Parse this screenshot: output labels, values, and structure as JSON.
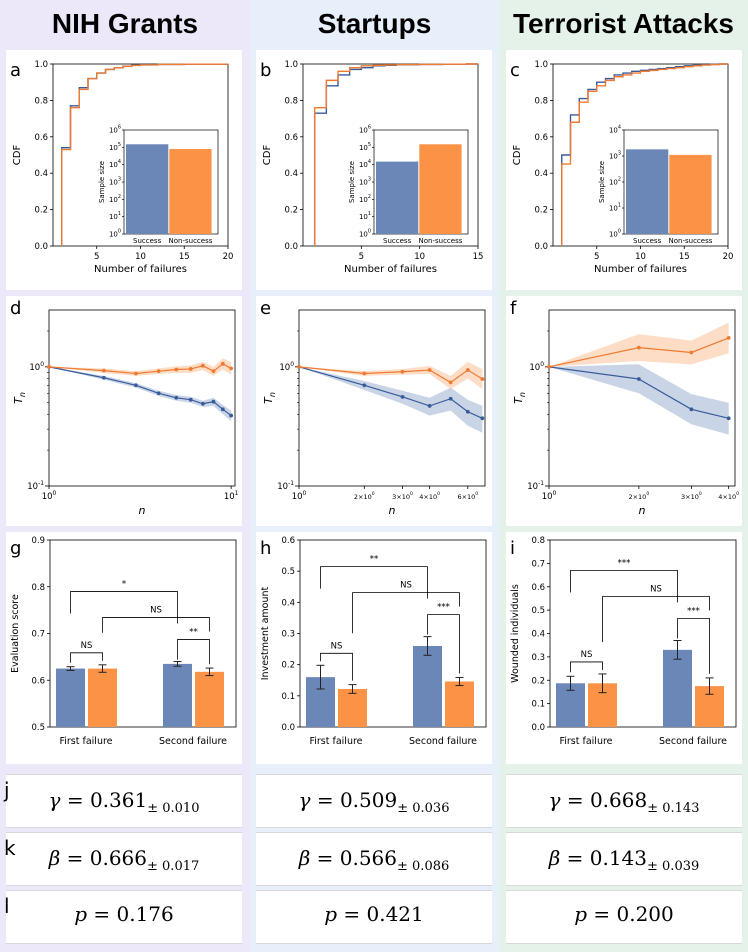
{
  "columns": [
    {
      "title": "NIH Grants",
      "bg": "#ede8f9"
    },
    {
      "title": "Startups",
      "bg": "#e7f0fa"
    },
    {
      "title": "Terrorist Attacks",
      "bg": "#e4f2ea"
    }
  ],
  "colors": {
    "success": "#6a87b8",
    "nonsuccess": "#fb9347",
    "success_line": "#3a5b9a",
    "nonsuccess_line": "#f07a30",
    "success_band": "#b7c5df",
    "nonsuccess_band": "#fcd2b2"
  },
  "panel_labels": {
    "cdf": [
      "a",
      "b",
      "c"
    ],
    "tn": [
      "d",
      "e",
      "f"
    ],
    "bars": [
      "g",
      "h",
      "i"
    ]
  },
  "row_labels": {
    "gamma": "j",
    "beta": "k",
    "p": "l"
  },
  "params": [
    {
      "gamma_sym": "γ",
      "gamma_eq": " = 0.361",
      "gamma_err": "± 0.010",
      "beta_sym": "β",
      "beta_eq": " = 0.666",
      "beta_err": "± 0.017",
      "p_sym": "p",
      "p_eq": " = 0.176"
    },
    {
      "gamma_sym": "γ",
      "gamma_eq": " = 0.509",
      "gamma_err": "± 0.036",
      "beta_sym": "β",
      "beta_eq": " = 0.566",
      "beta_err": "± 0.086",
      "p_sym": "p",
      "p_eq": " = 0.421"
    },
    {
      "gamma_sym": "γ",
      "gamma_eq": " = 0.668",
      "gamma_err": "± 0.143",
      "beta_sym": "β",
      "beta_eq": " = 0.143",
      "beta_err": "± 0.039",
      "p_sym": "p",
      "p_eq": " = 0.200"
    }
  ],
  "chart_data": [
    {
      "id": "a",
      "type": "line",
      "subtype": "cdf-step",
      "xlabel": "Number of failures",
      "ylabel": "CDF",
      "xlim": [
        0,
        20
      ],
      "ylim": [
        0,
        1
      ],
      "xticks": [
        5,
        10,
        15,
        20
      ],
      "yticks": [
        "0.0",
        "0.2",
        "0.4",
        "0.6",
        "0.8",
        "1.0"
      ],
      "series": [
        {
          "name": "Success",
          "x": [
            1,
            2,
            3,
            4,
            5,
            6,
            7,
            8,
            9,
            10,
            12,
            15,
            20
          ],
          "y": [
            0.54,
            0.77,
            0.87,
            0.92,
            0.95,
            0.97,
            0.98,
            0.988,
            0.993,
            0.996,
            0.998,
            0.999,
            1.0
          ]
        },
        {
          "name": "Non-success",
          "x": [
            1,
            2,
            3,
            4,
            5,
            6,
            7,
            8,
            9,
            10,
            12,
            15,
            20
          ],
          "y": [
            0.53,
            0.76,
            0.86,
            0.92,
            0.95,
            0.97,
            0.98,
            0.987,
            0.992,
            0.995,
            0.998,
            0.999,
            1.0
          ]
        }
      ],
      "inset": {
        "type": "bar",
        "ylabel": "Sample size",
        "yscale": "log",
        "yticks": [
          "10^0",
          "10^1",
          "10^2",
          "10^3",
          "10^4",
          "10^5",
          "10^6"
        ],
        "categories": [
          "Success",
          "Non-success"
        ],
        "values": [
          150000,
          80000
        ]
      }
    },
    {
      "id": "b",
      "type": "line",
      "subtype": "cdf-step",
      "xlabel": "Number of failures",
      "ylabel": "CDF",
      "xlim": [
        0,
        15
      ],
      "ylim": [
        0,
        1
      ],
      "xticks": [
        5,
        10,
        15
      ],
      "yticks": [
        "0.0",
        "0.2",
        "0.4",
        "0.6",
        "0.8",
        "1.0"
      ],
      "series": [
        {
          "name": "Success",
          "x": [
            1,
            2,
            3,
            4,
            5,
            6,
            7,
            8,
            10,
            12,
            14
          ],
          "y": [
            0.73,
            0.88,
            0.94,
            0.97,
            0.98,
            0.99,
            0.993,
            0.996,
            0.998,
            0.999,
            1.0
          ]
        },
        {
          "name": "Non-success",
          "x": [
            1,
            2,
            3,
            4,
            5,
            6,
            7,
            8,
            10,
            12,
            14
          ],
          "y": [
            0.76,
            0.91,
            0.96,
            0.98,
            0.99,
            0.993,
            0.995,
            0.997,
            0.998,
            0.999,
            1.0
          ]
        }
      ],
      "inset": {
        "type": "bar",
        "ylabel": "Sample size",
        "yscale": "log",
        "yticks": [
          "10^0",
          "10^1",
          "10^2",
          "10^3",
          "10^4",
          "10^5",
          "10^6"
        ],
        "categories": [
          "Success",
          "Non-success"
        ],
        "values": [
          15000,
          150000
        ]
      }
    },
    {
      "id": "c",
      "type": "line",
      "subtype": "cdf-step",
      "xlabel": "Number of failures",
      "ylabel": "CDF",
      "xlim": [
        0,
        20
      ],
      "ylim": [
        0,
        1
      ],
      "xticks": [
        5,
        10,
        15,
        20
      ],
      "yticks": [
        "0.0",
        "0.2",
        "0.4",
        "0.6",
        "0.8",
        "1.0"
      ],
      "series": [
        {
          "name": "Success",
          "x": [
            1,
            2,
            3,
            4,
            5,
            6,
            7,
            8,
            9,
            10,
            11,
            12,
            13,
            14,
            15,
            16,
            17,
            18,
            19
          ],
          "y": [
            0.5,
            0.72,
            0.81,
            0.86,
            0.9,
            0.92,
            0.94,
            0.95,
            0.96,
            0.965,
            0.97,
            0.975,
            0.98,
            0.985,
            0.99,
            0.993,
            0.996,
            0.998,
            1.0
          ]
        },
        {
          "name": "Non-success",
          "x": [
            1,
            2,
            3,
            4,
            5,
            6,
            7,
            8,
            9,
            10,
            11,
            12,
            13,
            14,
            15,
            16,
            17,
            18,
            19
          ],
          "y": [
            0.45,
            0.68,
            0.79,
            0.85,
            0.88,
            0.91,
            0.93,
            0.94,
            0.95,
            0.96,
            0.965,
            0.97,
            0.975,
            0.98,
            0.985,
            0.99,
            0.994,
            0.997,
            1.0
          ]
        }
      ],
      "inset": {
        "type": "bar",
        "ylabel": "Sample size",
        "yscale": "log",
        "yticks": [
          "10^0",
          "10^1",
          "10^2",
          "10^3",
          "10^4"
        ],
        "categories": [
          "Success",
          "Non-success"
        ],
        "values": [
          1800,
          1100
        ]
      }
    },
    {
      "id": "d",
      "type": "line",
      "scale": "log-log",
      "xlabel": "n",
      "ylabel": "T_n",
      "xlim": [
        1,
        10.5
      ],
      "ylim": [
        0.1,
        3
      ],
      "xticks": [
        "10^0",
        "10^1"
      ],
      "yticks": [
        "10^-1",
        "10^0"
      ],
      "series": [
        {
          "name": "Success",
          "x": [
            1,
            2,
            3,
            4,
            5,
            6,
            7,
            8,
            9,
            10
          ],
          "y": [
            1.0,
            0.81,
            0.7,
            0.6,
            0.55,
            0.53,
            0.49,
            0.51,
            0.44,
            0.39
          ],
          "band": [
            [
              1,
              1
            ],
            [
              0.78,
              0.84
            ],
            [
              0.67,
              0.73
            ],
            [
              0.57,
              0.63
            ],
            [
              0.52,
              0.58
            ],
            [
              0.5,
              0.56
            ],
            [
              0.46,
              0.52
            ],
            [
              0.47,
              0.55
            ],
            [
              0.4,
              0.48
            ],
            [
              0.35,
              0.43
            ]
          ]
        },
        {
          "name": "Non-success",
          "x": [
            1,
            2,
            3,
            4,
            5,
            6,
            7,
            8,
            9,
            10
          ],
          "y": [
            1.0,
            0.93,
            0.88,
            0.92,
            0.95,
            0.96,
            1.02,
            0.92,
            1.06,
            0.97
          ],
          "band": [
            [
              1,
              1
            ],
            [
              0.89,
              0.97
            ],
            [
              0.84,
              0.92
            ],
            [
              0.87,
              0.97
            ],
            [
              0.89,
              1.01
            ],
            [
              0.89,
              1.03
            ],
            [
              0.94,
              1.1
            ],
            [
              0.84,
              1.0
            ],
            [
              0.95,
              1.18
            ],
            [
              0.86,
              1.1
            ]
          ]
        }
      ]
    },
    {
      "id": "e",
      "type": "line",
      "scale": "log-log",
      "xlabel": "n",
      "ylabel": "T_n",
      "xlim": [
        1,
        7.2
      ],
      "ylim": [
        0.1,
        3
      ],
      "xticks": [
        "10^0",
        "2×10^0",
        "3×10^0",
        "4×10^0",
        "6×10^0"
      ],
      "yticks": [
        "10^-1",
        "10^0"
      ],
      "series": [
        {
          "name": "Success",
          "x": [
            1,
            2,
            3,
            4,
            5,
            6,
            7
          ],
          "y": [
            1.0,
            0.7,
            0.56,
            0.47,
            0.54,
            0.42,
            0.37
          ],
          "band": [
            [
              1,
              1
            ],
            [
              0.64,
              0.76
            ],
            [
              0.49,
              0.63
            ],
            [
              0.39,
              0.55
            ],
            [
              0.43,
              0.67
            ],
            [
              0.32,
              0.53
            ],
            [
              0.28,
              0.47
            ]
          ]
        },
        {
          "name": "Non-success",
          "x": [
            1,
            2,
            3,
            4,
            5,
            6,
            7
          ],
          "y": [
            1.0,
            0.88,
            0.91,
            0.94,
            0.74,
            0.94,
            0.79
          ],
          "band": [
            [
              1,
              1
            ],
            [
              0.84,
              0.92
            ],
            [
              0.86,
              0.96
            ],
            [
              0.87,
              1.02
            ],
            [
              0.65,
              0.84
            ],
            [
              0.8,
              1.1
            ],
            [
              0.65,
              0.96
            ]
          ]
        }
      ]
    },
    {
      "id": "f",
      "type": "line",
      "scale": "log-log",
      "xlabel": "n",
      "ylabel": "T_n",
      "xlim": [
        1,
        4.2
      ],
      "ylim": [
        0.1,
        3
      ],
      "xticks": [
        "10^0",
        "2×10^0",
        "3×10^0",
        "4×10^0"
      ],
      "yticks": [
        "10^-1",
        "10^0"
      ],
      "series": [
        {
          "name": "Success",
          "x": [
            1,
            2,
            3,
            4
          ],
          "y": [
            1.0,
            0.79,
            0.44,
            0.37
          ],
          "band": [
            [
              1,
              1
            ],
            [
              0.6,
              1.05
            ],
            [
              0.33,
              0.59
            ],
            [
              0.27,
              0.5
            ]
          ]
        },
        {
          "name": "Non-success",
          "x": [
            1,
            2,
            3,
            4
          ],
          "y": [
            1.0,
            1.45,
            1.32,
            1.75
          ],
          "band": [
            [
              1,
              1
            ],
            [
              1.12,
              1.88
            ],
            [
              1.05,
              1.66
            ],
            [
              1.3,
              2.35
            ]
          ]
        }
      ]
    },
    {
      "id": "g",
      "type": "bar",
      "ylabel": "Evaluation score",
      "ylim": [
        0.5,
        0.9
      ],
      "yticks": [
        "0.5",
        "0.6",
        "0.7",
        "0.8",
        "0.9"
      ],
      "categories": [
        "First failure",
        "Second failure"
      ],
      "series": [
        {
          "name": "Success",
          "values": [
            0.625,
            0.635
          ],
          "errors": [
            0.004,
            0.005
          ]
        },
        {
          "name": "Non-success",
          "values": [
            0.625,
            0.618
          ],
          "errors": [
            0.008,
            0.008
          ]
        }
      ],
      "annotations": [
        {
          "label": "*",
          "pair": "first-success vs second-success"
        },
        {
          "label": "NS",
          "pair": "first-nonsuccess vs second-nonsuccess"
        },
        {
          "label": "NS",
          "pair": "first failure"
        },
        {
          "label": "**",
          "pair": "second failure"
        }
      ]
    },
    {
      "id": "h",
      "type": "bar",
      "ylabel": "Investment amount",
      "ylim": [
        0,
        0.6
      ],
      "yticks": [
        "0.0",
        "0.1",
        "0.2",
        "0.3",
        "0.4",
        "0.5",
        "0.6"
      ],
      "categories": [
        "First failure",
        "Second failure"
      ],
      "series": [
        {
          "name": "Success",
          "values": [
            0.16,
            0.26
          ],
          "errors": [
            0.038,
            0.03
          ]
        },
        {
          "name": "Non-success",
          "values": [
            0.122,
            0.146
          ],
          "errors": [
            0.014,
            0.013
          ]
        }
      ],
      "annotations": [
        {
          "label": "**",
          "pair": "first-success vs second-success"
        },
        {
          "label": "NS",
          "pair": "first-nonsuccess vs second-nonsuccess"
        },
        {
          "label": "NS",
          "pair": "first failure"
        },
        {
          "label": "***",
          "pair": "second failure"
        }
      ]
    },
    {
      "id": "i",
      "type": "bar",
      "ylabel": "Wounded individuals",
      "ylim": [
        0,
        0.8
      ],
      "yticks": [
        "0.0",
        "0.1",
        "0.2",
        "0.3",
        "0.4",
        "0.5",
        "0.6",
        "0.7",
        "0.8"
      ],
      "categories": [
        "First failure",
        "Second failure"
      ],
      "series": [
        {
          "name": "Success",
          "values": [
            0.187,
            0.33
          ],
          "errors": [
            0.03,
            0.04
          ]
        },
        {
          "name": "Non-success",
          "values": [
            0.187,
            0.175
          ],
          "errors": [
            0.04,
            0.035
          ]
        }
      ],
      "annotations": [
        {
          "label": "***",
          "pair": "first-success vs second-success"
        },
        {
          "label": "NS",
          "pair": "first-nonsuccess vs second-nonsuccess"
        },
        {
          "label": "NS",
          "pair": "first failure"
        },
        {
          "label": "***",
          "pair": "second failure"
        }
      ]
    }
  ]
}
